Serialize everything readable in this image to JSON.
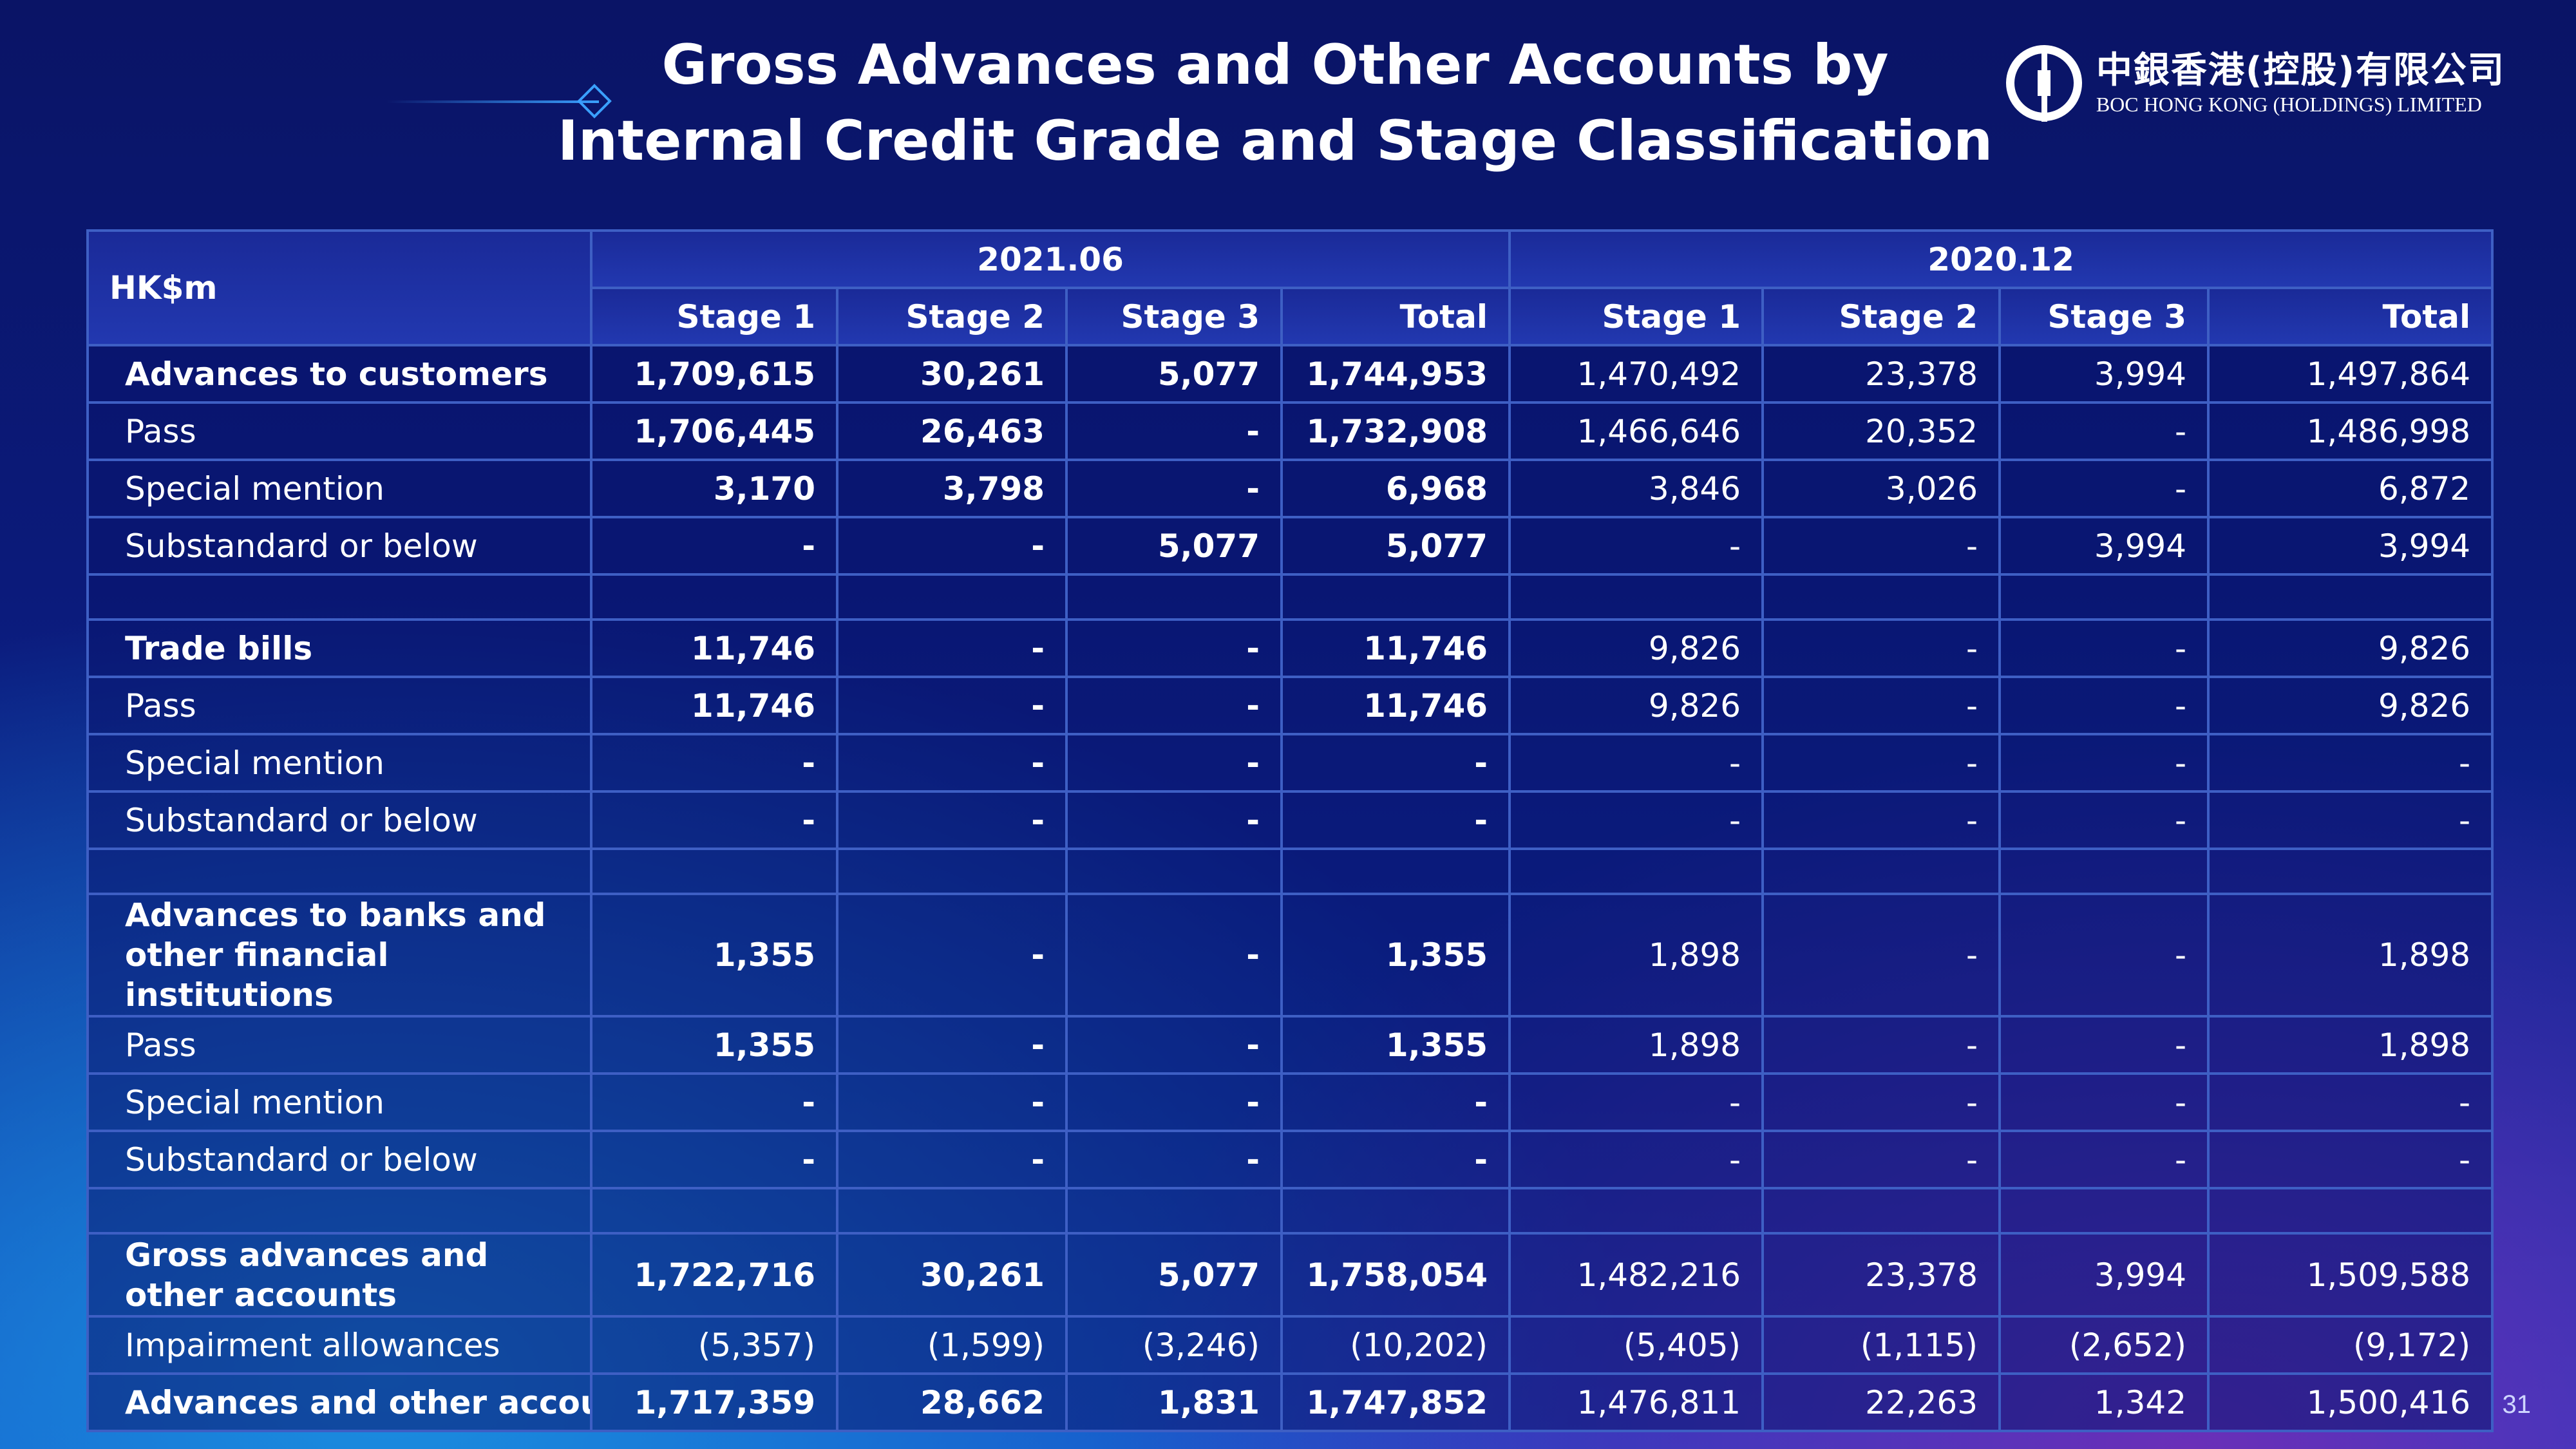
{
  "slide": {
    "title_line1": "Gross Advances and Other Accounts by",
    "title_line2": "Internal Credit Grade and Stage Classification",
    "logo_cn": "中銀香港(控股)有限公司",
    "logo_en": "BOC HONG KONG (HOLDINGS) LIMITED",
    "page_number": "31"
  },
  "table": {
    "unit_header": "HK$m",
    "periods": [
      "2021.06",
      "2020.12"
    ],
    "stages": [
      "Stage 1",
      "Stage 2",
      "Stage 3",
      "Total"
    ],
    "rows": [
      {
        "label": "Advances to customers",
        "values": [
          "1,709,615",
          "30,261",
          "5,077",
          "1,744,953",
          "1,470,492",
          "23,378",
          "3,994",
          "1,497,864"
        ]
      },
      {
        "label": "Pass",
        "values": [
          "1,706,445",
          "26,463",
          "-",
          "1,732,908",
          "1,466,646",
          "20,352",
          "-",
          "1,486,998"
        ]
      },
      {
        "label": "Special mention",
        "values": [
          "3,170",
          "3,798",
          "-",
          "6,968",
          "3,846",
          "3,026",
          "-",
          "6,872"
        ]
      },
      {
        "label": "Substandard or below",
        "values": [
          "-",
          "-",
          "5,077",
          "5,077",
          "-",
          "-",
          "3,994",
          "3,994"
        ]
      },
      {
        "label": "Trade bills",
        "values": [
          "11,746",
          "-",
          "-",
          "11,746",
          "9,826",
          "-",
          "-",
          "9,826"
        ]
      },
      {
        "label": "Pass",
        "values": [
          "11,746",
          "-",
          "-",
          "11,746",
          "9,826",
          "-",
          "-",
          "9,826"
        ]
      },
      {
        "label": "Special mention",
        "values": [
          "-",
          "-",
          "-",
          "-",
          "-",
          "-",
          "-",
          "-"
        ]
      },
      {
        "label": "Substandard or below",
        "values": [
          "-",
          "-",
          "-",
          "-",
          "-",
          "-",
          "-",
          "-"
        ]
      },
      {
        "label": "Advances to banks and other financial institutions",
        "values": [
          "1,355",
          "-",
          "-",
          "1,355",
          "1,898",
          "-",
          "-",
          "1,898"
        ]
      },
      {
        "label": "Pass",
        "values": [
          "1,355",
          "-",
          "-",
          "1,355",
          "1,898",
          "-",
          "-",
          "1,898"
        ]
      },
      {
        "label": "Special mention",
        "values": [
          "-",
          "-",
          "-",
          "-",
          "-",
          "-",
          "-",
          "-"
        ]
      },
      {
        "label": "Substandard or below",
        "values": [
          "-",
          "-",
          "-",
          "-",
          "-",
          "-",
          "-",
          "-"
        ]
      },
      {
        "label": "Gross advances and other accounts",
        "values": [
          "1,722,716",
          "30,261",
          "5,077",
          "1,758,054",
          "1,482,216",
          "23,378",
          "3,994",
          "1,509,588"
        ]
      },
      {
        "label": "Impairment allowances",
        "values": [
          "(5,357)",
          "(1,599)",
          "(3,246)",
          "(10,202)",
          "(5,405)",
          "(1,115)",
          "(2,652)",
          "(9,172)"
        ]
      },
      {
        "label": "Advances and other accounts",
        "values": [
          "1,717,359",
          "28,662",
          "1,831",
          "1,747,852",
          "1,476,811",
          "22,263",
          "1,342",
          "1,500,416"
        ]
      }
    ]
  }
}
